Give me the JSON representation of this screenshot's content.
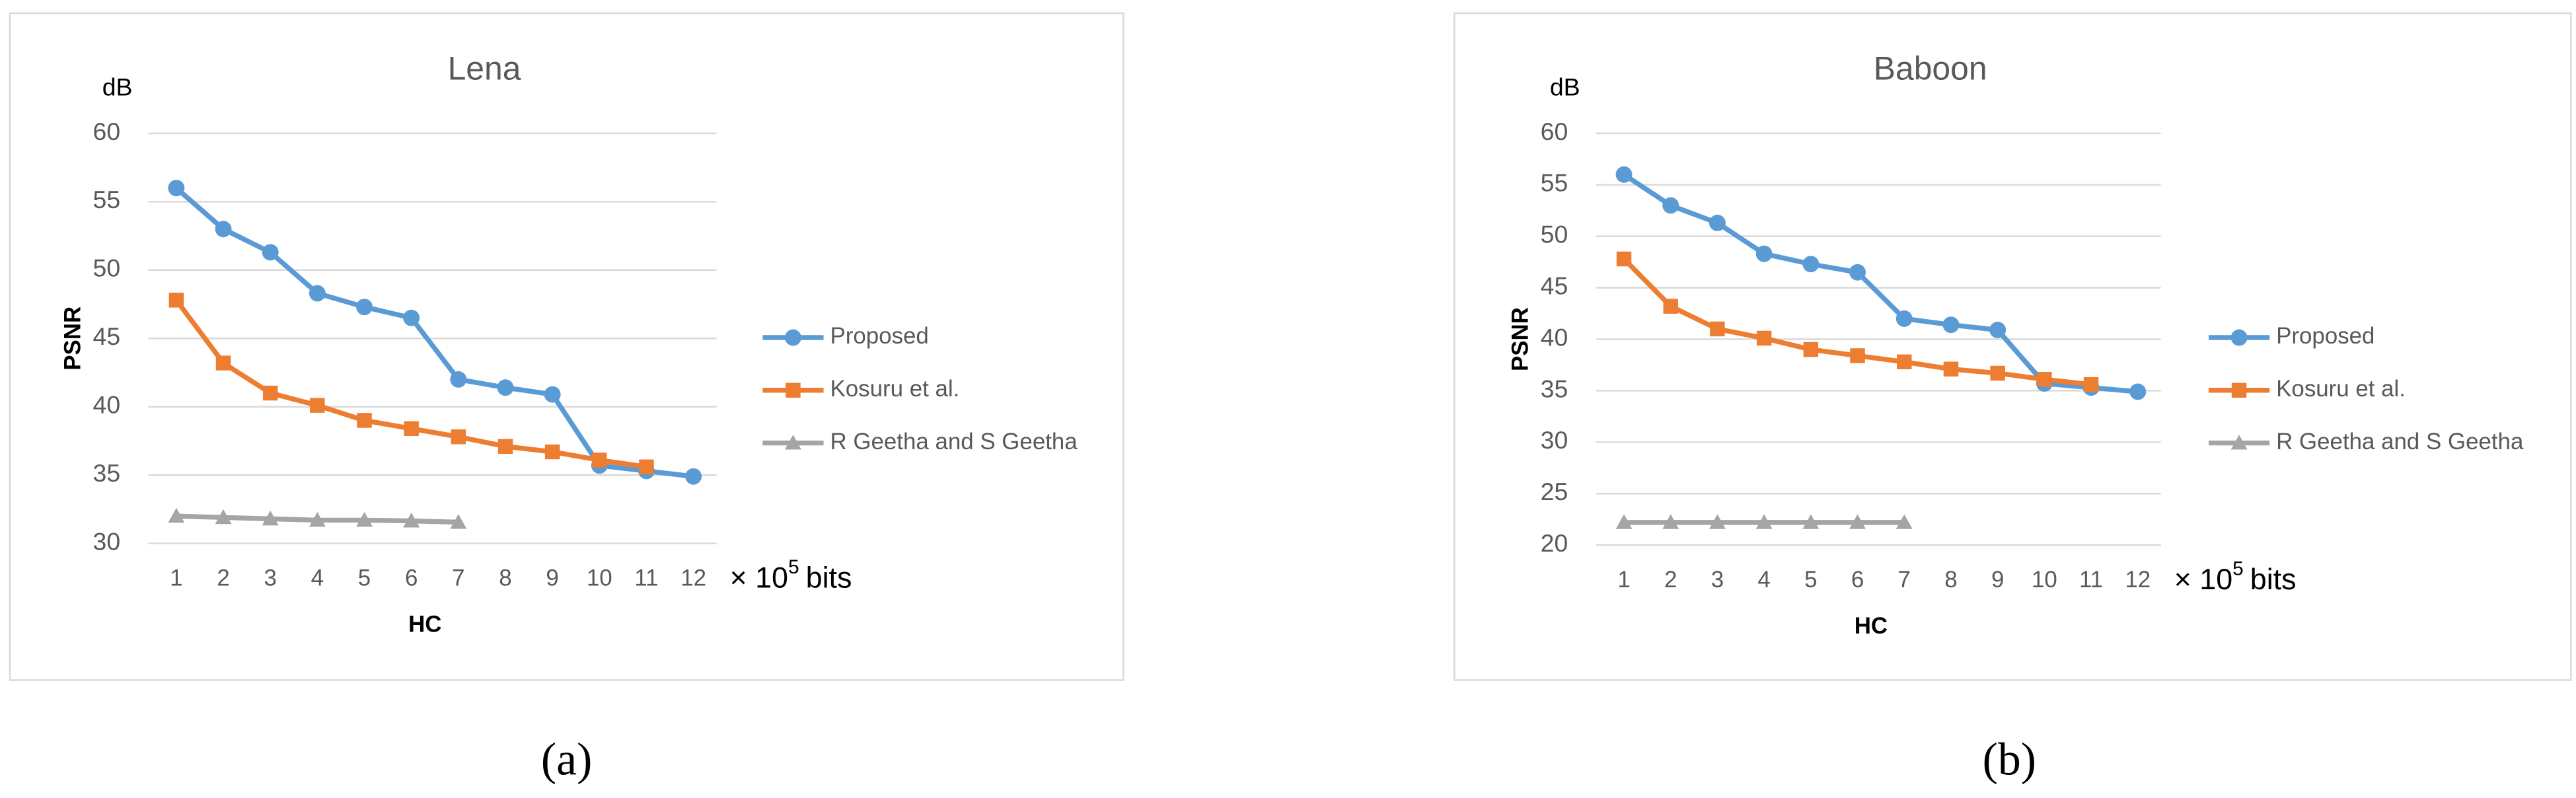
{
  "chart_data": [
    {
      "type": "line",
      "title": "Lena",
      "y_unit": "dB",
      "ylabel": "PSNR",
      "xlabel": "HC",
      "x_unit": "× 10",
      "x_unit_exponent": "5",
      "x_unit_suffix": "bits",
      "caption": "(a)",
      "categories": [
        "1",
        "2",
        "3",
        "4",
        "5",
        "6",
        "7",
        "8",
        "9",
        "10",
        "11",
        "12"
      ],
      "ylim": [
        30,
        60
      ],
      "yticks": [
        30,
        35,
        40,
        45,
        50,
        55,
        60
      ],
      "grid": true,
      "legend": "right",
      "series": [
        {
          "name": "Proposed",
          "color": "#5b9bd5",
          "marker": "circle",
          "values": [
            56,
            53,
            51.3,
            48.3,
            47.3,
            46.5,
            42,
            41.4,
            40.9,
            35.7,
            35.3,
            34.9
          ]
        },
        {
          "name": "Kosuru et al.",
          "color": "#ed7d31",
          "marker": "square",
          "values": [
            47.8,
            43.2,
            41,
            40.1,
            39,
            38.4,
            37.8,
            37.1,
            36.7,
            36.1,
            35.6,
            null
          ]
        },
        {
          "name": "R Geetha and S Geetha",
          "color": "#a5a5a5",
          "marker": "triangle",
          "values": [
            32,
            31.9,
            31.8,
            31.7,
            31.7,
            31.65,
            31.55,
            null,
            null,
            null,
            null,
            null
          ]
        }
      ]
    },
    {
      "type": "line",
      "title": "Baboon",
      "y_unit": "dB",
      "ylabel": "PSNR",
      "xlabel": "HC",
      "x_unit": "× 10",
      "x_unit_exponent": "5",
      "x_unit_suffix": "bits",
      "caption": "(b)",
      "categories": [
        "1",
        "2",
        "3",
        "4",
        "5",
        "6",
        "7",
        "8",
        "9",
        "10",
        "11",
        "12"
      ],
      "ylim": [
        20,
        60
      ],
      "yticks": [
        20,
        25,
        30,
        35,
        40,
        45,
        50,
        55,
        60
      ],
      "grid": true,
      "legend": "right",
      "series": [
        {
          "name": "Proposed",
          "color": "#5b9bd5",
          "marker": "circle",
          "values": [
            56,
            53,
            51.3,
            48.3,
            47.3,
            46.5,
            42,
            41.4,
            40.9,
            35.7,
            35.3,
            34.9
          ]
        },
        {
          "name": "Kosuru et al.",
          "color": "#ed7d31",
          "marker": "square",
          "values": [
            47.8,
            43.2,
            41,
            40.1,
            39,
            38.4,
            37.8,
            37.1,
            36.7,
            36.1,
            35.6,
            null
          ]
        },
        {
          "name": "R Geetha and S Geetha",
          "color": "#a5a5a5",
          "marker": "triangle",
          "values": [
            22.2,
            22.2,
            22.2,
            22.2,
            22.2,
            22.2,
            22.2,
            null,
            null,
            null,
            null,
            null
          ]
        }
      ]
    }
  ]
}
